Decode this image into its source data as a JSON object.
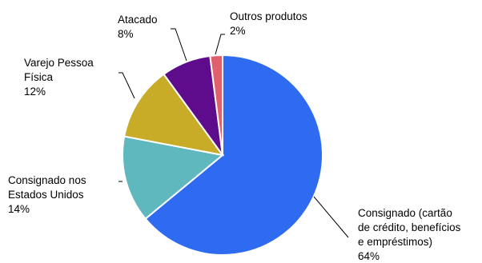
{
  "chart_data": {
    "type": "pie",
    "slices": [
      {
        "lines": [
          "Consignado (cartão",
          "de crédito, benefícios",
          "e empréstimos)"
        ],
        "pct_label": "64%",
        "value": 64,
        "color": "#2F6BF0"
      },
      {
        "lines": [
          "Consignado nos",
          "Estados Unidos"
        ],
        "pct_label": "14%",
        "value": 14,
        "color": "#5FB8BE"
      },
      {
        "lines": [
          "Varejo Pessoa",
          "Física"
        ],
        "pct_label": "12%",
        "value": 12,
        "color": "#C8AB26"
      },
      {
        "lines": [
          "Atacado"
        ],
        "pct_label": "8%",
        "value": 8,
        "color": "#5E0B8C"
      },
      {
        "lines": [
          "Outros produtos"
        ],
        "pct_label": "2%",
        "value": 2,
        "color": "#E0606E"
      }
    ],
    "start_angle": "12 o'clock",
    "direction": "clockwise",
    "legend": "none"
  }
}
